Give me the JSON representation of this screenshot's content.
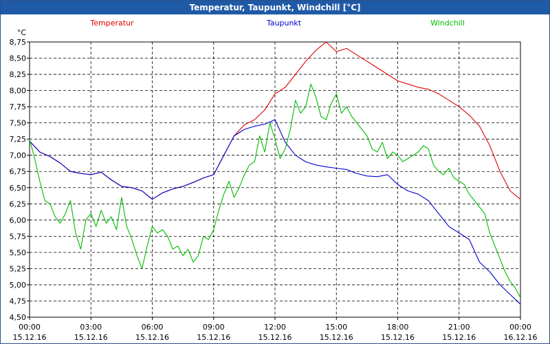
{
  "window": {
    "title": "Temperatur, Taupunkt, Windchill [°C]"
  },
  "chart_data": {
    "type": "line",
    "title": "Temperatur, Taupunkt, Windchill [°C]",
    "ylabel": "°C",
    "ylim": [
      4.5,
      8.75
    ],
    "yticks": [
      4.5,
      4.75,
      5.0,
      5.25,
      5.5,
      5.75,
      6.0,
      6.25,
      6.5,
      6.75,
      7.0,
      7.25,
      7.5,
      7.75,
      8.0,
      8.25,
      8.5,
      8.75
    ],
    "ytick_labels": [
      "4,50",
      "4,75",
      "5,00",
      "5,25",
      "5,50",
      "5,75",
      "6,00",
      "6,25",
      "6,50",
      "6,75",
      "7,00",
      "7,25",
      "7,50",
      "7,75",
      "8,00",
      "8,25",
      "8,50",
      "8,75"
    ],
    "xlim_hours": [
      0,
      24
    ],
    "xticks": [
      {
        "hour": 0,
        "time": "00:00",
        "date": "15.12.16"
      },
      {
        "hour": 3,
        "time": "03:00",
        "date": "15.12.16"
      },
      {
        "hour": 6,
        "time": "06:00",
        "date": "15.12.16"
      },
      {
        "hour": 9,
        "time": "09:00",
        "date": "15.12.16"
      },
      {
        "hour": 12,
        "time": "12:00",
        "date": "15.12.16"
      },
      {
        "hour": 15,
        "time": "15:00",
        "date": "15.12.16"
      },
      {
        "hour": 18,
        "time": "18:00",
        "date": "15.12.16"
      },
      {
        "hour": 21,
        "time": "21:00",
        "date": "15.12.16"
      },
      {
        "hour": 24,
        "time": "00:00",
        "date": "16.12.16"
      }
    ],
    "grid": true,
    "legend_position": "top",
    "series": [
      {
        "name": "Temperatur",
        "color": "#dd0000",
        "x": [
          0,
          0.5,
          1,
          1.5,
          2,
          2.5,
          3,
          3.5,
          4,
          4.5,
          5,
          5.5,
          6,
          6.5,
          7,
          7.5,
          8,
          8.5,
          9,
          9.5,
          10,
          10.5,
          11,
          11.5,
          12,
          12.5,
          13,
          13.5,
          14,
          14.5,
          15,
          15.5,
          16,
          16.5,
          17,
          17.5,
          18,
          18.5,
          19,
          19.5,
          20,
          20.5,
          21,
          21.5,
          22,
          22.5,
          23,
          23.5,
          24
        ],
        "y": [
          7.22,
          7.05,
          6.98,
          6.88,
          6.75,
          6.72,
          6.7,
          6.74,
          6.62,
          6.52,
          6.5,
          6.45,
          6.32,
          6.42,
          6.48,
          6.52,
          6.58,
          6.65,
          6.7,
          7.0,
          7.3,
          7.47,
          7.55,
          7.7,
          7.95,
          8.05,
          8.25,
          8.45,
          8.62,
          8.75,
          8.6,
          8.65,
          8.55,
          8.45,
          8.35,
          8.25,
          8.15,
          8.1,
          8.05,
          8.02,
          7.95,
          7.85,
          7.75,
          7.62,
          7.45,
          7.15,
          6.75,
          6.45,
          6.32
        ]
      },
      {
        "name": "Taupunkt",
        "color": "#0000cc",
        "x": [
          0,
          0.5,
          1,
          1.5,
          2,
          2.5,
          3,
          3.5,
          4,
          4.5,
          5,
          5.5,
          6,
          6.5,
          7,
          7.5,
          8,
          8.5,
          9,
          9.5,
          10,
          10.5,
          11,
          11.5,
          12,
          12.5,
          13,
          13.5,
          14,
          14.5,
          15,
          15.5,
          16,
          16.5,
          17,
          17.5,
          18,
          18.5,
          19,
          19.5,
          20,
          20.5,
          21,
          21.5,
          22,
          22.5,
          23,
          23.5,
          24
        ],
        "y": [
          7.22,
          7.05,
          6.98,
          6.88,
          6.75,
          6.72,
          6.7,
          6.74,
          6.62,
          6.52,
          6.5,
          6.45,
          6.32,
          6.42,
          6.48,
          6.52,
          6.58,
          6.65,
          6.7,
          7.0,
          7.3,
          7.4,
          7.45,
          7.48,
          7.55,
          7.2,
          7.0,
          6.9,
          6.85,
          6.82,
          6.8,
          6.78,
          6.72,
          6.68,
          6.67,
          6.7,
          6.55,
          6.45,
          6.4,
          6.3,
          6.1,
          5.9,
          5.8,
          5.7,
          5.35,
          5.2,
          5.0,
          4.85,
          4.7
        ]
      },
      {
        "name": "Windchill",
        "color": "#00bb00",
        "x": [
          0,
          0.25,
          0.5,
          0.75,
          1,
          1.25,
          1.5,
          1.75,
          2,
          2.25,
          2.5,
          2.75,
          3,
          3.25,
          3.5,
          3.75,
          4,
          4.25,
          4.5,
          4.75,
          5,
          5.25,
          5.5,
          5.75,
          6,
          6.25,
          6.5,
          6.75,
          7,
          7.25,
          7.5,
          7.75,
          8,
          8.25,
          8.5,
          8.75,
          9,
          9.25,
          9.5,
          9.75,
          10,
          10.25,
          10.5,
          10.75,
          11,
          11.25,
          11.5,
          11.75,
          12,
          12.25,
          12.5,
          12.75,
          13,
          13.25,
          13.5,
          13.75,
          14,
          14.25,
          14.5,
          14.75,
          15,
          15.25,
          15.5,
          15.75,
          16,
          16.25,
          16.5,
          16.75,
          17,
          17.25,
          17.5,
          17.75,
          18,
          18.25,
          18.5,
          18.75,
          19,
          19.25,
          19.5,
          19.75,
          20,
          20.25,
          20.5,
          20.75,
          21,
          21.25,
          21.5,
          21.75,
          22,
          22.25,
          22.5,
          22.75,
          23,
          23.25,
          23.5,
          23.75,
          24
        ],
        "y": [
          7.25,
          6.95,
          6.6,
          6.3,
          6.25,
          6.05,
          5.95,
          6.1,
          6.3,
          5.8,
          5.55,
          6.0,
          6.1,
          5.9,
          6.15,
          5.95,
          6.05,
          5.85,
          6.35,
          5.9,
          5.7,
          5.45,
          5.25,
          5.6,
          5.9,
          5.8,
          5.85,
          5.75,
          5.55,
          5.6,
          5.45,
          5.55,
          5.35,
          5.45,
          5.75,
          5.7,
          5.85,
          6.15,
          6.4,
          6.6,
          6.35,
          6.5,
          6.7,
          6.85,
          6.9,
          7.3,
          7.05,
          7.5,
          7.25,
          6.95,
          7.1,
          7.4,
          7.85,
          7.65,
          7.75,
          8.1,
          7.9,
          7.6,
          7.55,
          7.8,
          7.95,
          7.65,
          7.75,
          7.6,
          7.5,
          7.4,
          7.3,
          7.1,
          7.05,
          7.2,
          6.95,
          7.05,
          7.0,
          6.9,
          6.95,
          7.0,
          7.05,
          7.15,
          7.1,
          6.85,
          6.75,
          6.7,
          6.8,
          6.65,
          6.6,
          6.55,
          6.4,
          6.3,
          6.2,
          6.1,
          5.8,
          5.6,
          5.4,
          5.2,
          5.05,
          4.95,
          4.8
        ]
      }
    ]
  }
}
